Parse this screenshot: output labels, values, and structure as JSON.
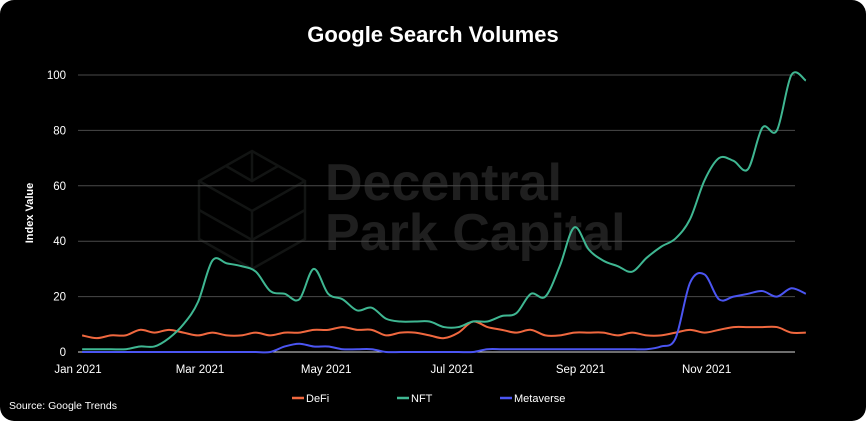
{
  "chart_data": {
    "type": "line",
    "title": "Google Search Volumes",
    "xlabel": "",
    "ylabel": "Index Value",
    "ylim": [
      0,
      100
    ],
    "yticks": [
      "0",
      "20",
      "40",
      "60",
      "80",
      "100"
    ],
    "xticks": [
      {
        "date": "2021-01-01",
        "label": "Jan 2021"
      },
      {
        "date": "2021-03-01",
        "label": "Mar 2021"
      },
      {
        "date": "2021-05-01",
        "label": "May 2021"
      },
      {
        "date": "2021-07-01",
        "label": "Jul 2021"
      },
      {
        "date": "2021-09-01",
        "label": "Sep 2021"
      },
      {
        "date": "2021-11-01",
        "label": "Nov 2021"
      }
    ],
    "x_start": "2021-01-03",
    "x_frequency": "weekly",
    "grid": true,
    "legend_placement": "bottom",
    "series": [
      {
        "name": "DeFi",
        "color": "#f0683f",
        "values": [
          6,
          5,
          6,
          6,
          8,
          7,
          8,
          7,
          6,
          7,
          6,
          6,
          7,
          6,
          7,
          7,
          8,
          8,
          9,
          8,
          8,
          6,
          7,
          7,
          6,
          5,
          7,
          11,
          9,
          8,
          7,
          8,
          6,
          6,
          7,
          7,
          7,
          6,
          7,
          6,
          6,
          7,
          8,
          7,
          8,
          9,
          9,
          9,
          9,
          7,
          7
        ]
      },
      {
        "name": "NFT",
        "color": "#3fb792",
        "values": [
          1,
          1,
          1,
          1,
          2,
          2,
          5,
          10,
          18,
          33,
          32,
          31,
          29,
          22,
          21,
          19,
          30,
          21,
          19,
          15,
          16,
          12,
          11,
          11,
          11,
          9,
          9,
          11,
          11,
          13,
          14,
          21,
          20,
          31,
          45,
          37,
          33,
          31,
          29,
          34,
          38,
          41,
          48,
          62,
          70,
          69,
          66,
          81,
          80,
          100,
          98
        ]
      },
      {
        "name": "Metaverse",
        "color": "#4b55f2",
        "values": [
          0,
          0,
          0,
          0,
          0,
          0,
          0,
          0,
          0,
          0,
          0,
          0,
          0,
          0,
          2,
          3,
          2,
          2,
          1,
          1,
          1,
          0,
          0,
          0,
          0,
          0,
          0,
          0,
          1,
          1,
          1,
          1,
          1,
          1,
          1,
          1,
          1,
          1,
          1,
          1,
          2,
          5,
          25,
          28,
          19,
          20,
          21,
          22,
          20,
          23,
          21
        ]
      }
    ]
  },
  "source": "Source: Google Trends",
  "watermark": {
    "line1": "Decentral",
    "line2": "Park Capital"
  }
}
